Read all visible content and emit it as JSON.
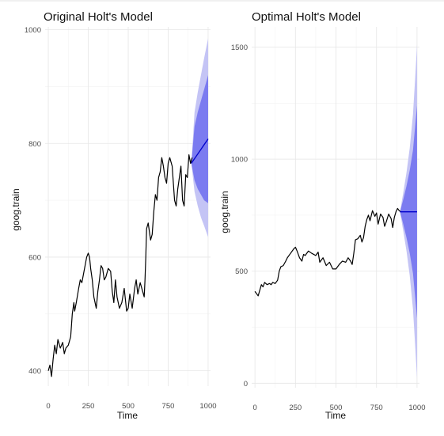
{
  "colors": {
    "series": "#000000",
    "forecast": "#0000cc",
    "pi80": "#7b7bf0",
    "pi95": "#c4c4f5",
    "grid": "#e6e6e6"
  },
  "chart_data": [
    {
      "type": "line",
      "title": "Original Holt's Model",
      "xlabel": "Time",
      "ylabel": "goog.train",
      "xlim": [
        -20,
        1015
      ],
      "ylim": [
        373,
        1005
      ],
      "xticks": [
        0,
        250,
        500,
        750,
        1000
      ],
      "yticks": [
        400,
        600,
        800,
        1000
      ],
      "xtick_labels": [
        "0",
        "250",
        "500",
        "750",
        "1000"
      ],
      "ytick_labels": [
        "400",
        "600",
        "800",
        "1000"
      ],
      "grid": true,
      "series": [
        {
          "kind": "history",
          "x": [
            0,
            10,
            20,
            30,
            40,
            50,
            60,
            75,
            90,
            100,
            110,
            125,
            140,
            150,
            160,
            165,
            175,
            190,
            200,
            210,
            220,
            230,
            240,
            250,
            258,
            265,
            275,
            285,
            300,
            310,
            320,
            330,
            340,
            350,
            360,
            375,
            390,
            400,
            410,
            420,
            430,
            445,
            460,
            475,
            490,
            500,
            510,
            525,
            540,
            550,
            560,
            575,
            590,
            600,
            605,
            610,
            615,
            625,
            640,
            650,
            660,
            670,
            680,
            690,
            700,
            710,
            720,
            730,
            740,
            750,
            760,
            775,
            790,
            800,
            810,
            820,
            830,
            840,
            850,
            860,
            870,
            880,
            890,
            900
          ],
          "y": [
            400,
            410,
            390,
            420,
            445,
            430,
            455,
            440,
            450,
            430,
            440,
            445,
            460,
            500,
            520,
            505,
            520,
            545,
            560,
            555,
            570,
            585,
            600,
            607,
            600,
            580,
            560,
            530,
            510,
            540,
            560,
            585,
            580,
            560,
            565,
            580,
            575,
            540,
            520,
            560,
            530,
            510,
            520,
            545,
            505,
            510,
            535,
            510,
            545,
            560,
            535,
            555,
            540,
            530,
            560,
            600,
            650,
            660,
            630,
            640,
            680,
            710,
            700,
            740,
            750,
            775,
            760,
            740,
            730,
            765,
            775,
            760,
            700,
            690,
            720,
            740,
            760,
            700,
            690,
            745,
            740,
            780,
            765,
            775
          ]
        },
        {
          "kind": "forecast",
          "x": [
            895,
            1000
          ],
          "y": [
            765,
            808
          ]
        }
      ],
      "interval_95": {
        "x": [
          895,
          915,
          935,
          955,
          975,
          1000
        ],
        "lower": [
          765,
          715,
          690,
          670,
          655,
          635
        ],
        "upper": [
          765,
          855,
          890,
          920,
          950,
          985
        ]
      },
      "interval_80": {
        "x": [
          895,
          915,
          935,
          955,
          975,
          1000
        ],
        "lower": [
          765,
          735,
          720,
          710,
          700,
          695
        ],
        "upper": [
          765,
          830,
          855,
          875,
          895,
          920
        ]
      }
    },
    {
      "type": "line",
      "title": "Optimal Holt's Model",
      "xlabel": "Time",
      "ylabel": "goog.train",
      "xlim": [
        -20,
        1015
      ],
      "ylim": [
        -20,
        1590
      ],
      "xticks": [
        0,
        250,
        500,
        750,
        1000
      ],
      "yticks": [
        0,
        500,
        1000,
        1500
      ],
      "xtick_labels": [
        "0",
        "250",
        "500",
        "750",
        "1000"
      ],
      "ytick_labels": [
        "0",
        "500",
        "1000",
        "1500"
      ],
      "grid": true,
      "series": [
        {
          "kind": "history",
          "x": [
            0,
            10,
            20,
            30,
            40,
            50,
            60,
            75,
            90,
            100,
            110,
            125,
            140,
            150,
            160,
            175,
            190,
            200,
            220,
            240,
            250,
            260,
            275,
            290,
            300,
            310,
            330,
            350,
            375,
            390,
            400,
            420,
            440,
            460,
            480,
            500,
            520,
            540,
            560,
            575,
            590,
            600,
            610,
            620,
            635,
            650,
            660,
            670,
            680,
            690,
            700,
            710,
            725,
            740,
            750,
            760,
            775,
            790,
            800,
            810,
            825,
            840,
            850,
            860,
            870,
            880,
            890,
            900
          ],
          "y": [
            410,
            400,
            390,
            415,
            440,
            430,
            450,
            440,
            445,
            440,
            450,
            445,
            460,
            500,
            520,
            525,
            545,
            560,
            580,
            600,
            607,
            590,
            560,
            545,
            575,
            570,
            590,
            580,
            570,
            585,
            540,
            560,
            525,
            540,
            510,
            510,
            530,
            545,
            540,
            560,
            545,
            530,
            580,
            640,
            645,
            660,
            630,
            650,
            700,
            730,
            750,
            725,
            770,
            745,
            760,
            710,
            755,
            740,
            700,
            720,
            755,
            735,
            695,
            740,
            765,
            780,
            770,
            765
          ]
        },
        {
          "kind": "forecast",
          "x": [
            895,
            1000
          ],
          "y": [
            765,
            765
          ]
        }
      ],
      "interval_95": {
        "x": [
          895,
          915,
          935,
          955,
          975,
          990,
          1000
        ],
        "lower": [
          765,
          680,
          590,
          480,
          330,
          150,
          20
        ],
        "upper": [
          765,
          850,
          940,
          1050,
          1200,
          1380,
          1510
        ]
      },
      "interval_80": {
        "x": [
          895,
          915,
          935,
          955,
          975,
          990,
          1000
        ],
        "lower": [
          765,
          710,
          650,
          580,
          490,
          370,
          290
        ],
        "upper": [
          765,
          820,
          880,
          950,
          1040,
          1160,
          1240
        ]
      }
    }
  ]
}
